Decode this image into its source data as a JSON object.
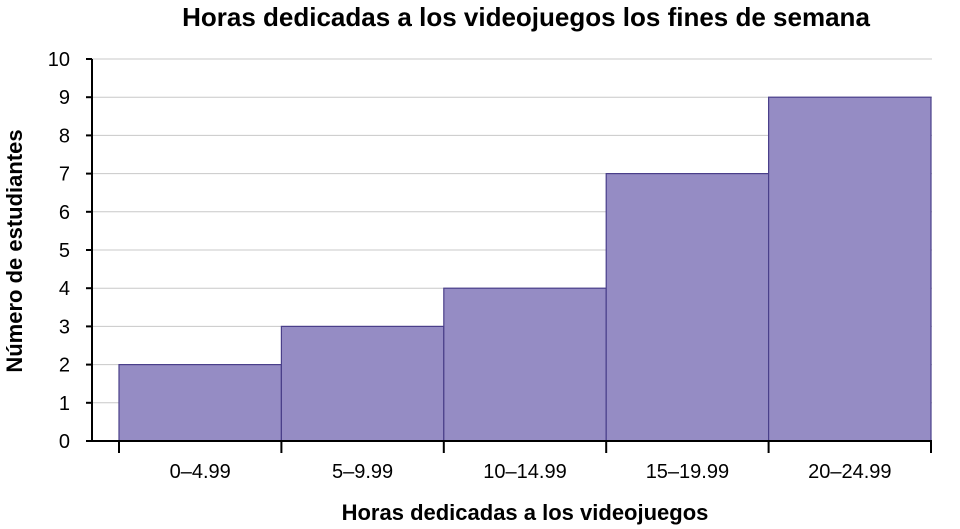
{
  "chart_data": {
    "type": "bar",
    "title": "Horas dedicadas a los videojuegos los fines de semana",
    "xlabel": "Horas dedicadas a los videojuegos",
    "ylabel": "Número de estudiantes",
    "categories": [
      "0–4.99",
      "5–9.99",
      "10–14.99",
      "15–19.99",
      "20–24.99"
    ],
    "values": [
      2,
      3,
      4,
      7,
      9
    ],
    "ylim": [
      0,
      10
    ],
    "yticks": [
      0,
      1,
      2,
      3,
      4,
      5,
      6,
      7,
      8,
      9,
      10
    ],
    "grid": true,
    "colors": {
      "bar_fill": "#958cc4",
      "bar_edge": "#4a3f8a",
      "grid": "#c8c8c8"
    }
  }
}
